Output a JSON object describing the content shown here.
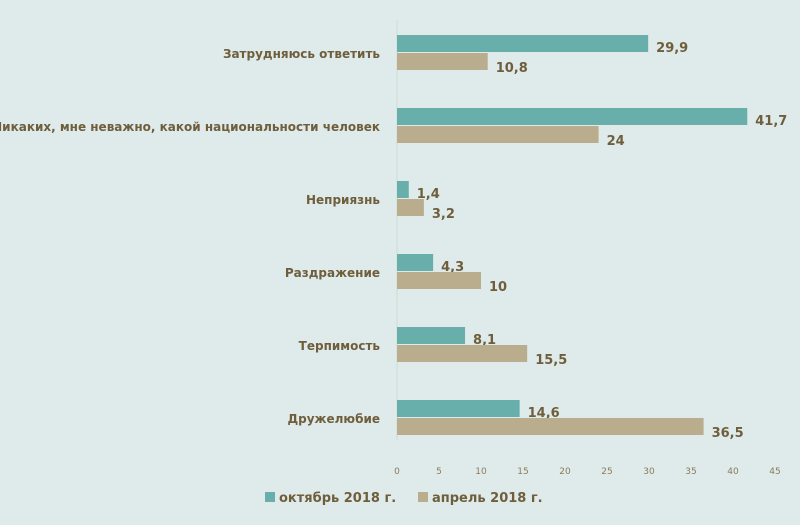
{
  "chart_data": {
    "type": "bar",
    "orientation": "horizontal",
    "categories": [
      "Затрудняюсь ответить",
      "Никаких, мне неважно, какой национальности человек",
      "Неприязнь",
      "Раздражение",
      "Терпимость",
      "Дружелюбие"
    ],
    "series": [
      {
        "name": "октябрь 2018 г.",
        "color": "#68aeab",
        "values": [
          29.9,
          41.7,
          1.4,
          4.3,
          8.1,
          14.6
        ],
        "labels": [
          "29,9",
          "41,7",
          "1,4",
          "4,3",
          "8,1",
          "14,6"
        ]
      },
      {
        "name": "апрель 2018 г.",
        "color": "#b9ad8e",
        "values": [
          10.8,
          24,
          3.2,
          10,
          15.5,
          36.5
        ],
        "labels": [
          "10,8",
          "24",
          "3,2",
          "10",
          "15,5",
          "36,5"
        ]
      }
    ],
    "xlim": [
      0,
      45
    ],
    "xticks": [
      0,
      5,
      10,
      15,
      20,
      25,
      30,
      35,
      40,
      45
    ],
    "legend": "bottom",
    "grid": false
  }
}
